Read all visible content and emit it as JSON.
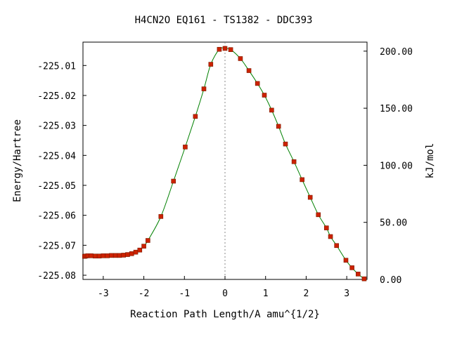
{
  "chart_data": {
    "type": "line",
    "title": "H4CN2O   EQ161 - TS1382 - DDC393",
    "xlabel": "Reaction Path Length/A amu^{1/2}",
    "ylabel": "Energy/Hartree",
    "y2label": "kJ/mol",
    "xlim": [
      -3.5,
      3.5
    ],
    "ylim": [
      -225.0814,
      -225.0022
    ],
    "y2lim": [
      0,
      207.9
    ],
    "x_ticks": [
      -3,
      -2,
      -1,
      0,
      1,
      2,
      3
    ],
    "x_tick_labels": [
      "-3",
      "-2",
      "-1",
      "0",
      "1",
      "2",
      "3"
    ],
    "y_ticks": [
      -225.01,
      -225.02,
      -225.03,
      -225.04,
      -225.05,
      -225.06,
      -225.07,
      -225.08
    ],
    "y_tick_labels": [
      "-225.01",
      "-225.02",
      "-225.03",
      "-225.04",
      "-225.05",
      "-225.06",
      "-225.07",
      "-225.08"
    ],
    "y2_ticks": [
      0,
      50,
      100,
      150,
      200
    ],
    "y2_tick_labels": [
      "0.00",
      "50.00",
      "100.00",
      "150.00",
      "200.00"
    ],
    "ts_marker_x": 0,
    "grid": false,
    "colors": {
      "line": "#008000",
      "marker": "#cc2200",
      "marker_edge": "#7a1a00",
      "ts_line": "#888888"
    },
    "series": [
      {
        "x": [
          -3.46,
          -3.43,
          -3.38,
          -3.3,
          -3.2,
          -3.1,
          -3.0,
          -2.9,
          -2.8,
          -2.7,
          -2.6,
          -2.5,
          -2.4,
          -2.3,
          -2.2,
          -2.1,
          -2.0,
          -1.9,
          -1.58,
          -1.27,
          -0.98,
          -0.73,
          -0.52,
          -0.35,
          -0.14,
          0.0,
          0.14,
          0.38,
          0.59,
          0.8,
          0.97,
          1.15,
          1.32,
          1.49,
          1.7,
          1.9,
          2.1,
          2.3,
          2.5,
          2.6,
          2.75,
          2.98,
          3.13,
          3.28,
          3.43
        ],
        "y": [
          -225.0737,
          -225.0736,
          -225.0735,
          -225.0735,
          -225.0736,
          -225.0736,
          -225.0735,
          -225.0735,
          -225.0734,
          -225.0734,
          -225.0734,
          -225.0733,
          -225.0731,
          -225.0728,
          -225.0723,
          -225.0716,
          -225.0703,
          -225.0684,
          -225.0604,
          -225.0486,
          -225.0372,
          -225.027,
          -225.0178,
          -225.0096,
          -225.0046,
          -225.0043,
          -225.0047,
          -225.0077,
          -225.0117,
          -225.016,
          -225.0199,
          -225.0249,
          -225.0303,
          -225.0362,
          -225.0421,
          -225.0481,
          -225.054,
          -225.0598,
          -225.0642,
          -225.0671,
          -225.0701,
          -225.075,
          -225.0775,
          -225.0796,
          -225.0812
        ]
      }
    ]
  }
}
